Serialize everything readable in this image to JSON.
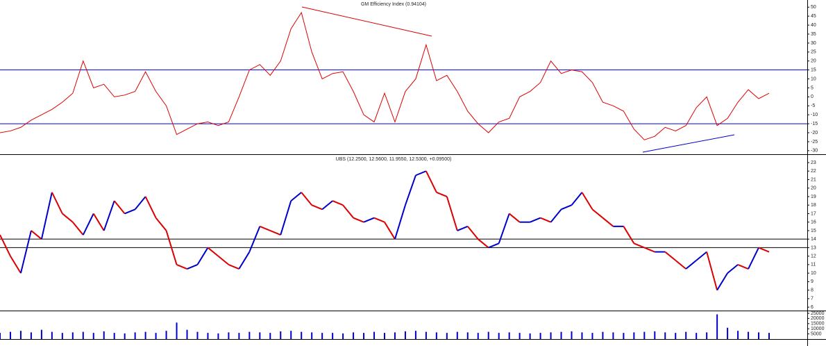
{
  "chart_data": [
    {
      "type": "line",
      "title": "GM Efficiency Index (0.94104)",
      "color": "#dd0000",
      "ylim": [
        -32,
        54
      ],
      "yticks": [
        50,
        45,
        40,
        35,
        30,
        25,
        20,
        15,
        10,
        5,
        0,
        -5,
        -10,
        -15,
        -20,
        -25,
        -30
      ],
      "hlines": [
        15,
        -15
      ],
      "hline_color": "#0000cc",
      "values": [
        -20,
        -19,
        -17,
        -13,
        -10,
        -7,
        -3,
        2,
        20,
        5,
        7,
        0,
        1,
        3,
        14,
        3,
        -5,
        -21,
        -18,
        -15,
        -14,
        -16,
        -14,
        0,
        15,
        18,
        12,
        20,
        38,
        47,
        25,
        10,
        13,
        14,
        3,
        -10,
        -14,
        2,
        -14,
        3,
        10,
        29,
        9,
        12,
        3,
        -8,
        -15,
        -20,
        -14,
        -12,
        0,
        3,
        8,
        20,
        13,
        15,
        14,
        8,
        -3,
        -5,
        -8,
        -18,
        -24,
        -22,
        -17,
        -19,
        -16,
        -6,
        0,
        -16,
        -12,
        -3,
        4,
        -1,
        2
      ]
    },
    {
      "type": "price",
      "title": "UBS (12.2500, 12.5600, 11.9550, 12.5300, +0.09500)",
      "up_color": "#0000cc",
      "down_color": "#dd0000",
      "ylim": [
        5.6,
        23.9
      ],
      "yticks": [
        23,
        22,
        21,
        20,
        19,
        18,
        17,
        16,
        15,
        14,
        13,
        12,
        11,
        10,
        9,
        8,
        7,
        6
      ],
      "hlines": [
        14,
        13
      ],
      "hline_color": "#000000",
      "values": [
        14.5,
        12,
        10,
        15,
        14,
        19.5,
        17,
        16,
        14.5,
        17,
        15,
        18.5,
        17,
        17.5,
        19,
        16.5,
        15,
        11,
        10.5,
        11,
        13,
        12,
        11,
        10.5,
        12.5,
        15.5,
        15,
        14.5,
        18.5,
        19.5,
        18,
        17.5,
        18.5,
        18,
        16.5,
        16,
        16.5,
        16,
        14,
        18,
        21.5,
        22,
        19.5,
        19,
        15,
        15.5,
        14,
        13,
        13.5,
        17,
        16,
        16,
        16.5,
        16,
        17.5,
        18,
        19.5,
        17.5,
        16.5,
        15.5,
        15.5,
        13.5,
        13,
        12.5,
        12.5,
        11.5,
        10.5,
        11.5,
        12.5,
        8,
        10,
        11,
        10.5,
        13,
        12.5
      ]
    },
    {
      "type": "bar",
      "color": "#0000cc",
      "ylim": [
        0,
        27000
      ],
      "yticks": [
        {
          "value": 25000,
          "label": "25000"
        },
        {
          "value": 20000,
          "label": "20000"
        },
        {
          "value": 15000,
          "label": "15000"
        },
        {
          "value": 10000,
          "label": "10000"
        },
        {
          "value": 5000,
          "label": "5000"
        }
      ],
      "values": [
        6000,
        7000,
        8000,
        6500,
        9000,
        7000,
        6000,
        6500,
        7000,
        6000,
        7500,
        6000,
        5500,
        6500,
        7000,
        6000,
        8000,
        16000,
        9000,
        7000,
        6000,
        5500,
        6500,
        6000,
        7000,
        6500,
        6000,
        7500,
        8000,
        7000,
        6500,
        6000,
        6000,
        5500,
        6500,
        6000,
        7000,
        6000,
        6500,
        7500,
        8000,
        7000,
        6500,
        6000,
        7000,
        6500,
        6000,
        7000,
        6000,
        6500,
        6000,
        5500,
        6000,
        6500,
        7000,
        7500,
        6500,
        6000,
        7000,
        6500,
        6000,
        6500,
        7000,
        7500,
        6500,
        6000,
        7000,
        6000,
        6500,
        24000,
        11000,
        8000,
        7000,
        6500,
        6000
      ]
    }
  ]
}
